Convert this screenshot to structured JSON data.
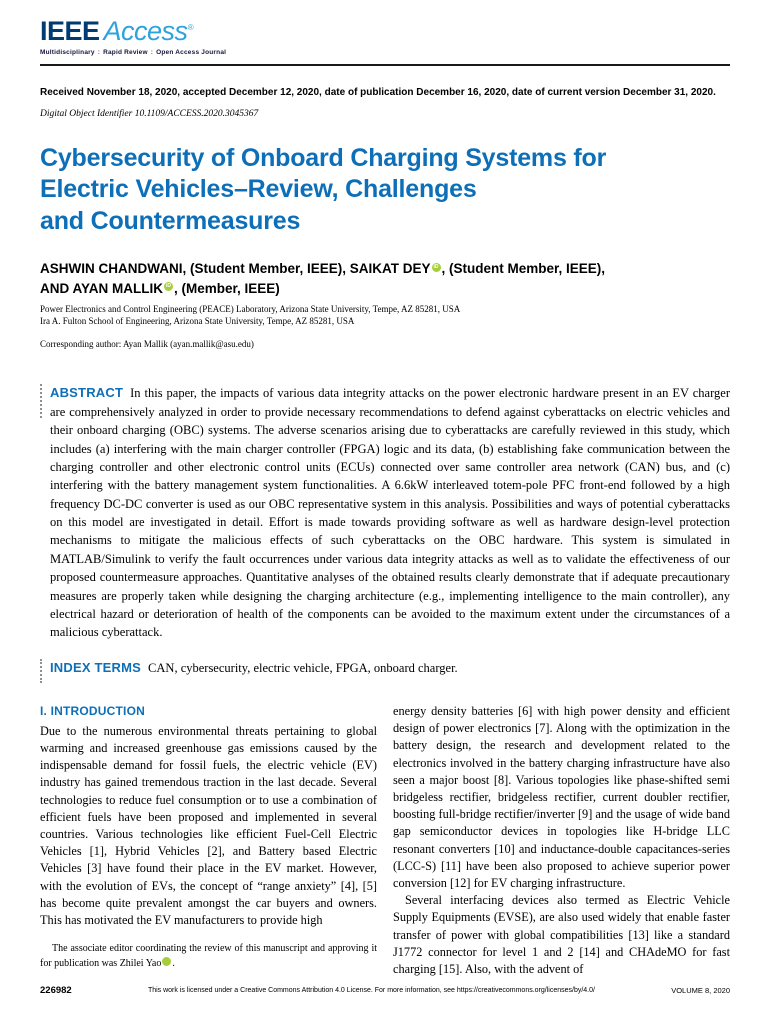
{
  "header": {
    "logo": {
      "ieee": "IEEE",
      "access": "Access",
      "reg": "®",
      "tagline_parts": [
        "Multidisciplinary",
        "Rapid Review",
        "Open Access Journal"
      ],
      "tagline_sep": ":"
    },
    "received_line": "Received November 18, 2020, accepted December 12, 2020, date of publication December 16, 2020, date of current version December 31, 2020.",
    "doi_line": "Digital Object Identifier 10.1109/ACCESS.2020.3045367"
  },
  "title": {
    "lines": [
      "Cybersecurity of Onboard Charging Systems for",
      "Electric Vehicles–Review, Challenges",
      "and Countermeasures"
    ]
  },
  "authors": {
    "line1_a": "ASHWIN CHANDWANI, (Student Member, IEEE), SAIKAT DEY",
    "line1_b": ", (Student Member, IEEE),",
    "line2_a": "AND AYAN MALLIK",
    "line2_b": ", (Member, IEEE)",
    "orcid_label": "iD"
  },
  "affiliations": [
    "Power Electronics and Control Engineering (PEACE) Laboratory, Arizona State University, Tempe, AZ 85281, USA",
    "Ira A. Fulton School of Engineering, Arizona State University, Tempe, AZ 85281, USA"
  ],
  "corresponding": "Corresponding author: Ayan Mallik (ayan.mallik@asu.edu)",
  "abstract": {
    "label": "ABSTRACT",
    "text": "In this paper, the impacts of various data integrity attacks on the power electronic hardware present in an EV charger are comprehensively analyzed in order to provide necessary recommendations to defend against cyberattacks on electric vehicles and their onboard charging (OBC) systems. The adverse scenarios arising due to cyberattacks are carefully reviewed in this study, which includes (a) interfering with the main charger controller (FPGA) logic and its data, (b) establishing fake communication between the charging controller and other electronic control units (ECUs) connected over same controller area network (CAN) bus, and (c) interfering with the battery management system functionalities. A 6.6kW interleaved totem-pole PFC front-end followed by a high frequency DC-DC converter is used as our OBC representative system in this analysis. Possibilities and ways of potential cyberattacks on this model are investigated in detail. Effort is made towards providing software as well as hardware design-level protection mechanisms to mitigate the malicious effects of such cyberattacks on the OBC hardware. This system is simulated in MATLAB/Simulink to verify the fault occurrences under various data integrity attacks as well as to validate the effectiveness of our proposed countermeasure approaches. Quantitative analyses of the obtained results clearly demonstrate that if adequate precautionary measures are properly taken while designing the charging architecture (e.g., implementing intelligence to the main controller), any electrical hazard or deterioration of health of the components can be avoided to the maximum extent under the circumstances of a malicious cyberattack."
  },
  "index_terms": {
    "label": "INDEX TERMS",
    "text": "CAN, cybersecurity, electric vehicle, FPGA, onboard charger."
  },
  "introduction": {
    "heading": "I. INTRODUCTION",
    "col1_para": "Due to the numerous environmental threats pertaining to global warming and increased greenhouse gas emissions caused by the indispensable demand for fossil fuels, the electric vehicle (EV) industry has gained tremendous traction in the last decade. Several technologies to reduce fuel consumption or to use a combination of efficient fuels have been proposed and implemented in several countries. Various technologies like efficient Fuel-Cell Electric Vehicles [1], Hybrid Vehicles [2], and Battery based Electric Vehicles [3] have found their place in the EV market. However, with the evolution of EVs, the concept of “range anxiety” [4], [5] has become quite prevalent amongst the car buyers and owners. This has motivated the EV manufacturers to provide high",
    "footnote_a": "The associate editor coordinating the review of this manuscript and approving it for publication was Zhilei Yao",
    "footnote_b": ".",
    "col2_para1": "energy density batteries [6] with high power density and efficient design of power electronics [7]. Along with the optimization in the battery design, the research and development related to the electronics involved in the battery charging infrastructure have also seen a major boost [8]. Various topologies like phase-shifted semi bridgeless rectifier, bridgeless rectifier, current doubler rectifier, boosting full-bridge rectifier/inverter [9] and the usage of wide band gap semiconductor devices in topologies like H-bridge LLC resonant converters [10] and inductance-double capacitances-series (LCC-S) [11] have been also proposed to achieve superior power conversion [12] for EV charging infrastructure.",
    "col2_para2": "Several interfacing devices also termed as Electric Vehicle Supply Equipments (EVSE), are also used widely that enable faster transfer of power with global compatibilities [13] like a standard J1772 connector for level 1 and 2 [14] and CHAdeMO for fast charging [15]. Also, with the advent of"
  },
  "footer": {
    "page_number": "226982",
    "license": "This work is licensed under a Creative Commons Attribution 4.0 License. For more information, see https://creativecommons.org/licenses/by/4.0/",
    "volume": "VOLUME 8, 2020"
  }
}
